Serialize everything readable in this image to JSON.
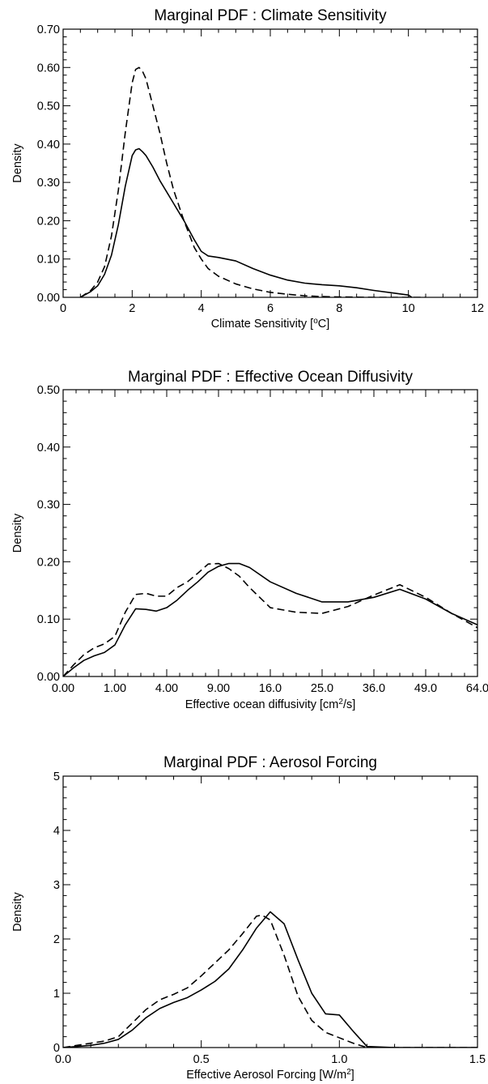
{
  "chart_data": [
    {
      "type": "line",
      "title": "Marginal PDF : Climate Sensitivity",
      "xlabel": "Climate Sensitivity [°C]",
      "xlabel_parts": [
        "Climate Sensitivity [",
        "o",
        "C]"
      ],
      "ylabel": "Density",
      "xlim": [
        0,
        12
      ],
      "ylim": [
        0,
        0.7
      ],
      "x_ticks": [
        0,
        2,
        4,
        6,
        8,
        10,
        12
      ],
      "x_tick_labels": [
        "0",
        "2",
        "4",
        "6",
        "8",
        "10",
        "12"
      ],
      "y_ticks": [
        0,
        0.1,
        0.2,
        0.3,
        0.4,
        0.5,
        0.6,
        0.7
      ],
      "y_tick_labels": [
        "0.00",
        "0.10",
        "0.20",
        "0.30",
        "0.40",
        "0.50",
        "0.60",
        "0.70"
      ],
      "grid": false,
      "legend": "none",
      "series": [
        {
          "style": "solid",
          "x": [
            0.5,
            0.8,
            1.0,
            1.2,
            1.4,
            1.6,
            1.8,
            2.0,
            2.1,
            2.2,
            2.3,
            2.4,
            2.6,
            2.8,
            3.0,
            3.2,
            3.5,
            3.8,
            4.0,
            4.2,
            4.5,
            5.0,
            5.5,
            6.0,
            6.5,
            7.0,
            7.5,
            8.0,
            8.5,
            9.0,
            9.5,
            10.0,
            10.1
          ],
          "y": [
            0.0,
            0.015,
            0.03,
            0.06,
            0.11,
            0.19,
            0.29,
            0.37,
            0.385,
            0.388,
            0.38,
            0.37,
            0.34,
            0.305,
            0.275,
            0.245,
            0.2,
            0.15,
            0.12,
            0.108,
            0.104,
            0.095,
            0.075,
            0.058,
            0.045,
            0.037,
            0.033,
            0.03,
            0.025,
            0.018,
            0.012,
            0.006,
            0.0
          ]
        },
        {
          "style": "dashed",
          "x": [
            0.5,
            0.8,
            1.0,
            1.2,
            1.4,
            1.6,
            1.8,
            2.0,
            2.1,
            2.2,
            2.3,
            2.4,
            2.6,
            2.8,
            3.0,
            3.2,
            3.5,
            3.8,
            4.0,
            4.2,
            4.5,
            5.0,
            5.5,
            6.0,
            6.5,
            7.0,
            7.5,
            8.0,
            9.0,
            10.0,
            10.5
          ],
          "y": [
            0.0,
            0.018,
            0.04,
            0.08,
            0.16,
            0.28,
            0.43,
            0.56,
            0.595,
            0.6,
            0.59,
            0.57,
            0.5,
            0.43,
            0.35,
            0.28,
            0.2,
            0.13,
            0.1,
            0.075,
            0.055,
            0.035,
            0.022,
            0.013,
            0.008,
            0.004,
            0.002,
            0.001,
            0.0,
            0.0,
            0.0
          ]
        }
      ]
    },
    {
      "type": "line",
      "title": "Marginal PDF : Effective Ocean Diffusivity",
      "xlabel": "Effective ocean diffusivity [cm²/s]",
      "xlabel_parts": [
        "Effective ocean diffusivity [cm",
        "2",
        "/s]"
      ],
      "ylabel": "Density",
      "x_scale": "sqrt",
      "xlim": [
        0,
        64
      ],
      "ylim": [
        0,
        0.5
      ],
      "x_ticks": [
        0,
        1,
        4,
        9,
        16,
        25,
        36,
        49,
        64
      ],
      "x_tick_labels": [
        "0.00",
        "1.00",
        "4.00",
        "9.00",
        "16.0",
        "25.0",
        "36.0",
        "49.0",
        "64.0"
      ],
      "y_ticks": [
        0,
        0.1,
        0.2,
        0.3,
        0.4,
        0.5
      ],
      "y_tick_labels": [
        "0.00",
        "0.10",
        "0.20",
        "0.30",
        "0.40",
        "0.50"
      ],
      "grid": false,
      "legend": "none",
      "series": [
        {
          "style": "solid",
          "x": [
            0.0,
            0.04,
            0.16,
            0.36,
            0.64,
            1.0,
            1.44,
            1.96,
            2.56,
            3.24,
            4.0,
            4.84,
            5.76,
            6.76,
            7.84,
            9.0,
            10.24,
            11.56,
            12.96,
            16.0,
            20.25,
            25.0,
            30.25,
            36.0,
            42.25,
            49.0,
            56.25,
            64.0
          ],
          "y": [
            0.0,
            0.015,
            0.028,
            0.036,
            0.042,
            0.055,
            0.09,
            0.118,
            0.117,
            0.114,
            0.12,
            0.133,
            0.15,
            0.165,
            0.182,
            0.192,
            0.197,
            0.197,
            0.19,
            0.165,
            0.145,
            0.13,
            0.13,
            0.138,
            0.152,
            0.135,
            0.11,
            0.09
          ]
        },
        {
          "style": "dashed",
          "x": [
            0.0,
            0.04,
            0.16,
            0.36,
            0.64,
            1.0,
            1.44,
            1.96,
            2.56,
            3.24,
            4.0,
            4.84,
            5.76,
            6.76,
            7.84,
            9.0,
            10.24,
            11.56,
            12.96,
            16.0,
            20.25,
            25.0,
            30.25,
            36.0,
            42.25,
            49.0,
            56.25,
            64.0
          ],
          "y": [
            0.0,
            0.02,
            0.038,
            0.05,
            0.057,
            0.07,
            0.112,
            0.143,
            0.145,
            0.14,
            0.14,
            0.155,
            0.165,
            0.18,
            0.196,
            0.197,
            0.188,
            0.175,
            0.155,
            0.12,
            0.112,
            0.11,
            0.122,
            0.142,
            0.16,
            0.138,
            0.11,
            0.085
          ]
        }
      ]
    },
    {
      "type": "line",
      "title": "Marginal PDF : Aerosol Forcing",
      "xlabel": "Effective Aerosol Forcing [W/m²]",
      "xlabel_parts": [
        "Effective Aerosol Forcing [W/m",
        "2",
        "]"
      ],
      "ylabel": "Density",
      "xlim": [
        0,
        1.5
      ],
      "ylim": [
        0,
        5
      ],
      "x_ticks": [
        0,
        0.5,
        1.0,
        1.5
      ],
      "x_tick_labels": [
        "0.0",
        "0.5",
        "1.0",
        "1.5"
      ],
      "y_ticks": [
        0,
        1,
        2,
        3,
        4,
        5
      ],
      "y_tick_labels": [
        "0",
        "1",
        "2",
        "3",
        "4",
        "5"
      ],
      "grid": false,
      "legend": "none",
      "series": [
        {
          "style": "solid",
          "x": [
            0.0,
            0.05,
            0.1,
            0.15,
            0.2,
            0.25,
            0.3,
            0.35,
            0.4,
            0.45,
            0.5,
            0.55,
            0.6,
            0.65,
            0.7,
            0.75,
            0.8,
            0.85,
            0.9,
            0.95,
            1.0,
            1.05,
            1.1,
            1.2,
            1.3,
            1.5
          ],
          "y": [
            0.0,
            0.02,
            0.04,
            0.08,
            0.15,
            0.32,
            0.55,
            0.72,
            0.83,
            0.92,
            1.06,
            1.22,
            1.45,
            1.8,
            2.2,
            2.5,
            2.28,
            1.62,
            1.0,
            0.62,
            0.6,
            0.3,
            0.02,
            0.0,
            0.0,
            0.0
          ]
        },
        {
          "style": "dashed",
          "x": [
            0.0,
            0.05,
            0.1,
            0.15,
            0.2,
            0.25,
            0.3,
            0.35,
            0.4,
            0.45,
            0.5,
            0.55,
            0.6,
            0.65,
            0.7,
            0.72,
            0.75,
            0.8,
            0.85,
            0.9,
            0.95,
            1.0,
            1.05,
            1.1,
            1.2,
            1.5
          ],
          "y": [
            0.0,
            0.04,
            0.08,
            0.12,
            0.2,
            0.45,
            0.7,
            0.88,
            0.98,
            1.1,
            1.32,
            1.56,
            1.8,
            2.1,
            2.42,
            2.44,
            2.35,
            1.7,
            0.95,
            0.5,
            0.28,
            0.18,
            0.08,
            0.0,
            0.0,
            0.0
          ]
        }
      ]
    }
  ]
}
